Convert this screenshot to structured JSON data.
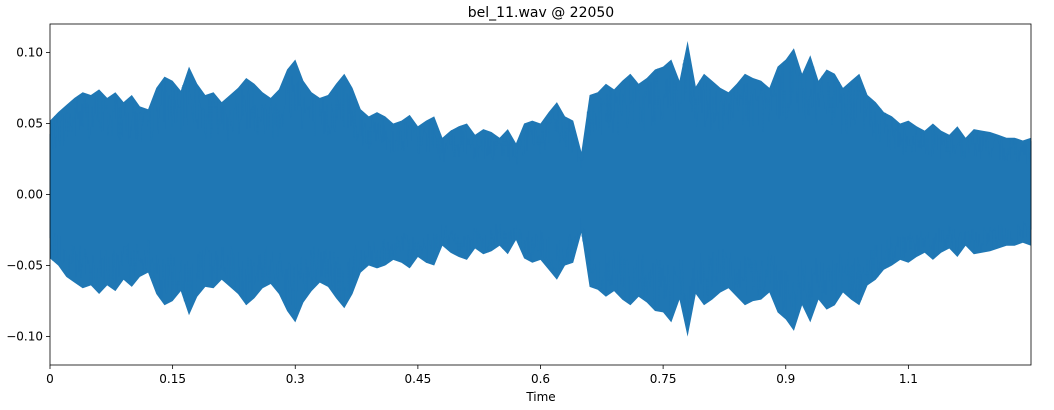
{
  "chart_data": {
    "type": "area",
    "title": "bel_11.wav @ 22050",
    "xlabel": "Time",
    "ylabel": "",
    "xlim": [
      0,
      1.2
    ],
    "ylim": [
      -0.12,
      0.12
    ],
    "grid": false,
    "x_ticks": [
      {
        "value": 0,
        "label": "0"
      },
      {
        "value": 0.15,
        "label": "0.15"
      },
      {
        "value": 0.3,
        "label": "0.3"
      },
      {
        "value": 0.45,
        "label": "0.45"
      },
      {
        "value": 0.6,
        "label": "0.6"
      },
      {
        "value": 0.75,
        "label": "0.75"
      },
      {
        "value": 0.9,
        "label": "0.9"
      },
      {
        "value": 1.05,
        "label": "1.1"
      }
    ],
    "y_ticks": [
      {
        "value": 0.1,
        "label": "0.10"
      },
      {
        "value": 0.05,
        "label": "0.05"
      },
      {
        "value": 0.0,
        "label": "0.00"
      },
      {
        "value": -0.05,
        "label": "−0.05"
      },
      {
        "value": -0.1,
        "label": "−0.10"
      }
    ],
    "series": [
      {
        "color": "#1f77b4",
        "x": [
          0,
          0.01,
          0.02,
          0.03,
          0.04,
          0.05,
          0.06,
          0.07,
          0.08,
          0.09,
          0.1,
          0.11,
          0.12,
          0.13,
          0.14,
          0.15,
          0.16,
          0.17,
          0.18,
          0.19,
          0.2,
          0.21,
          0.22,
          0.23,
          0.24,
          0.25,
          0.26,
          0.27,
          0.28,
          0.29,
          0.3,
          0.31,
          0.32,
          0.33,
          0.34,
          0.35,
          0.36,
          0.37,
          0.38,
          0.39,
          0.4,
          0.41,
          0.42,
          0.43,
          0.44,
          0.45,
          0.46,
          0.47,
          0.48,
          0.49,
          0.5,
          0.51,
          0.52,
          0.53,
          0.54,
          0.55,
          0.56,
          0.57,
          0.58,
          0.59,
          0.6,
          0.61,
          0.62,
          0.63,
          0.64,
          0.65,
          0.66,
          0.67,
          0.68,
          0.69,
          0.7,
          0.71,
          0.72,
          0.73,
          0.74,
          0.75,
          0.76,
          0.77,
          0.78,
          0.79,
          0.8,
          0.81,
          0.82,
          0.83,
          0.84,
          0.85,
          0.86,
          0.87,
          0.88,
          0.89,
          0.9,
          0.91,
          0.92,
          0.93,
          0.94,
          0.95,
          0.96,
          0.97,
          0.98,
          0.99,
          1.0,
          1.01,
          1.02,
          1.03,
          1.04,
          1.05,
          1.06,
          1.07,
          1.08,
          1.09,
          1.1,
          1.11,
          1.12,
          1.13,
          1.14,
          1.15,
          1.16,
          1.17,
          1.18,
          1.19,
          1.2
        ],
        "upper": [
          0.052,
          0.058,
          0.063,
          0.068,
          0.072,
          0.07,
          0.074,
          0.068,
          0.072,
          0.065,
          0.07,
          0.062,
          0.06,
          0.075,
          0.083,
          0.08,
          0.073,
          0.09,
          0.078,
          0.07,
          0.072,
          0.065,
          0.07,
          0.075,
          0.082,
          0.078,
          0.072,
          0.068,
          0.074,
          0.088,
          0.095,
          0.08,
          0.072,
          0.068,
          0.07,
          0.078,
          0.085,
          0.075,
          0.06,
          0.055,
          0.058,
          0.055,
          0.05,
          0.052,
          0.056,
          0.048,
          0.052,
          0.055,
          0.04,
          0.045,
          0.048,
          0.05,
          0.042,
          0.046,
          0.044,
          0.04,
          0.046,
          0.036,
          0.05,
          0.052,
          0.05,
          0.058,
          0.065,
          0.055,
          0.052,
          0.03,
          0.07,
          0.072,
          0.078,
          0.074,
          0.08,
          0.085,
          0.078,
          0.082,
          0.088,
          0.09,
          0.095,
          0.08,
          0.108,
          0.076,
          0.085,
          0.08,
          0.075,
          0.072,
          0.078,
          0.085,
          0.082,
          0.08,
          0.075,
          0.09,
          0.095,
          0.103,
          0.085,
          0.098,
          0.08,
          0.088,
          0.085,
          0.075,
          0.08,
          0.085,
          0.07,
          0.065,
          0.058,
          0.055,
          0.05,
          0.052,
          0.048,
          0.045,
          0.05,
          0.045,
          0.042,
          0.048,
          0.04,
          0.046,
          0.045,
          0.044,
          0.042,
          0.04,
          0.04,
          0.038,
          0.04
        ],
        "lower": [
          -0.045,
          -0.05,
          -0.058,
          -0.062,
          -0.066,
          -0.064,
          -0.07,
          -0.064,
          -0.068,
          -0.06,
          -0.065,
          -0.058,
          -0.055,
          -0.07,
          -0.078,
          -0.075,
          -0.068,
          -0.085,
          -0.072,
          -0.065,
          -0.066,
          -0.06,
          -0.065,
          -0.07,
          -0.078,
          -0.073,
          -0.066,
          -0.063,
          -0.07,
          -0.082,
          -0.09,
          -0.076,
          -0.068,
          -0.062,
          -0.065,
          -0.073,
          -0.08,
          -0.07,
          -0.055,
          -0.05,
          -0.052,
          -0.05,
          -0.046,
          -0.048,
          -0.052,
          -0.044,
          -0.048,
          -0.05,
          -0.036,
          -0.041,
          -0.044,
          -0.046,
          -0.038,
          -0.042,
          -0.04,
          -0.036,
          -0.042,
          -0.032,
          -0.045,
          -0.048,
          -0.046,
          -0.053,
          -0.06,
          -0.05,
          -0.048,
          -0.027,
          -0.065,
          -0.067,
          -0.072,
          -0.068,
          -0.074,
          -0.078,
          -0.072,
          -0.076,
          -0.082,
          -0.083,
          -0.09,
          -0.074,
          -0.1,
          -0.07,
          -0.078,
          -0.074,
          -0.069,
          -0.066,
          -0.072,
          -0.078,
          -0.075,
          -0.074,
          -0.069,
          -0.083,
          -0.088,
          -0.096,
          -0.078,
          -0.09,
          -0.074,
          -0.081,
          -0.078,
          -0.069,
          -0.074,
          -0.078,
          -0.064,
          -0.06,
          -0.053,
          -0.05,
          -0.046,
          -0.048,
          -0.044,
          -0.041,
          -0.046,
          -0.041,
          -0.038,
          -0.044,
          -0.036,
          -0.042,
          -0.041,
          -0.04,
          -0.038,
          -0.036,
          -0.036,
          -0.034,
          -0.036
        ]
      }
    ]
  }
}
